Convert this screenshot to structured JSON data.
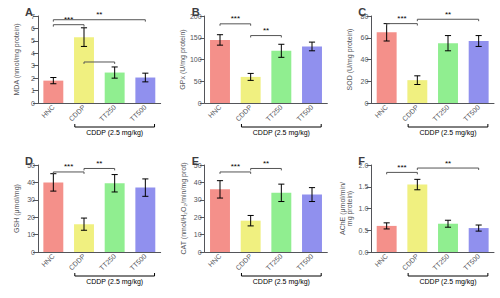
{
  "chart_data": [
    {
      "type": "bar",
      "title": "A",
      "ylabel": "MDA (nmol/mg protein)",
      "xlabel": "CDDP (2.5 mg/kg)",
      "categories": [
        "HNC",
        "CDDP",
        "TT250",
        "TT500"
      ],
      "values": [
        1.8,
        5.3,
        2.45,
        2.05
      ],
      "errors": [
        0.25,
        0.75,
        0.45,
        0.35
      ],
      "colors": [
        "#F4908A",
        "#F0F080",
        "#90EE90",
        "#9090EE"
      ],
      "ylim": [
        0,
        7
      ],
      "yticks": [
        0,
        1,
        2,
        3,
        4,
        5,
        6,
        7
      ],
      "grid": false,
      "annotations": [
        {
          "from": "HNC",
          "to": "CDDP",
          "y": 6.3,
          "label": "***"
        },
        {
          "from": "HNC",
          "to": "TT500",
          "y": 6.7,
          "label": "**"
        },
        {
          "from": "CDDP",
          "to": "TT250",
          "y": 3.3
        }
      ]
    },
    {
      "type": "bar",
      "title": "B",
      "ylabel": "GPx (U/mg protein)",
      "xlabel": "CDDP (2.5 mg/kg)",
      "categories": [
        "HNC",
        "CDDP",
        "TT250",
        "TT500"
      ],
      "values": [
        145,
        60,
        120,
        130
      ],
      "errors": [
        12,
        8,
        15,
        10
      ],
      "colors": [
        "#F4908A",
        "#F0F080",
        "#90EE90",
        "#9090EE"
      ],
      "ylim": [
        0,
        200
      ],
      "yticks": [
        0,
        50,
        100,
        150,
        200
      ],
      "grid": false,
      "annotations": [
        {
          "from": "HNC",
          "to": "CDDP",
          "y": 182,
          "label": "***"
        },
        {
          "from": "CDDP",
          "to": "TT250",
          "y": 155,
          "label": "**"
        }
      ]
    },
    {
      "type": "bar",
      "title": "C",
      "ylabel": "SOD (U/mg protein)",
      "xlabel": "CDDP (2.5 mg/kg)",
      "categories": [
        "HNC",
        "CDDP",
        "TT250",
        "TT500"
      ],
      "values": [
        65,
        21,
        55,
        57
      ],
      "errors": [
        8,
        4,
        7,
        5
      ],
      "colors": [
        "#F4908A",
        "#F0F080",
        "#90EE90",
        "#9090EE"
      ],
      "ylim": [
        0,
        80
      ],
      "yticks": [
        0,
        20,
        40,
        60,
        80
      ],
      "grid": false,
      "annotations": [
        {
          "from": "HNC",
          "to": "CDDP",
          "y": 73,
          "label": "***"
        },
        {
          "from": "CDDP",
          "to": "TT500",
          "y": 77,
          "label": "**"
        }
      ]
    },
    {
      "type": "bar",
      "title": "D",
      "ylabel": "GSH (μmol/mg)",
      "xlabel": "CDDP (2.5 mg/kg)",
      "categories": [
        "HNC",
        "CDDP",
        "TT250",
        "TT500"
      ],
      "values": [
        40,
        16,
        39.5,
        37
      ],
      "errors": [
        5,
        3.5,
        5,
        5
      ],
      "colors": [
        "#F4908A",
        "#F0F080",
        "#90EE90",
        "#9090EE"
      ],
      "ylim": [
        0,
        50
      ],
      "yticks": [
        0,
        10,
        20,
        30,
        40,
        50
      ],
      "grid": false,
      "annotations": [
        {
          "from": "HNC",
          "to": "CDDP",
          "y": 46,
          "label": "***"
        },
        {
          "from": "CDDP",
          "to": "TT250",
          "y": 48,
          "label": "**"
        }
      ]
    },
    {
      "type": "bar",
      "title": "E",
      "ylabel": "CAT (nmol/H₂O₂/min/mg prot)",
      "xlabel": "CDDP (2.5 mg/kg)",
      "categories": [
        "HNC",
        "CDDP",
        "TT250",
        "TT500"
      ],
      "values": [
        36,
        18,
        34,
        33
      ],
      "errors": [
        5,
        3,
        5,
        4
      ],
      "colors": [
        "#F4908A",
        "#F0F080",
        "#90EE90",
        "#9090EE"
      ],
      "ylim": [
        0,
        50
      ],
      "yticks": [
        0,
        10,
        20,
        30,
        40,
        50
      ],
      "grid": false,
      "annotations": [
        {
          "from": "HNC",
          "to": "CDDP",
          "y": 46,
          "label": "***"
        },
        {
          "from": "CDDP",
          "to": "TT250",
          "y": 48,
          "label": "**"
        }
      ]
    },
    {
      "type": "bar",
      "title": "F",
      "ylabel": "AChE (μmol/min/\nmg protein)",
      "xlabel": "CDDP (2.5 mg/kg)",
      "categories": [
        "HNC",
        "CDDP",
        "TT250",
        "TT500"
      ],
      "values": [
        0.6,
        1.55,
        0.65,
        0.55
      ],
      "errors": [
        0.07,
        0.12,
        0.08,
        0.07
      ],
      "colors": [
        "#F4908A",
        "#F0F080",
        "#90EE90",
        "#9090EE"
      ],
      "ylim": [
        0,
        2
      ],
      "yticks": [
        {
          "value": 0,
          "label": "0.0"
        },
        0.5,
        {
          "value": 1,
          "label": "1.0"
        },
        1.5,
        {
          "value": 2,
          "label": "2.0"
        }
      ],
      "grid": false,
      "annotations": [
        {
          "from": "HNC",
          "to": "CDDP",
          "y": 1.83,
          "label": "***"
        },
        {
          "from": "CDDP",
          "to": "TT500",
          "y": 1.93,
          "label": "**"
        }
      ]
    }
  ]
}
